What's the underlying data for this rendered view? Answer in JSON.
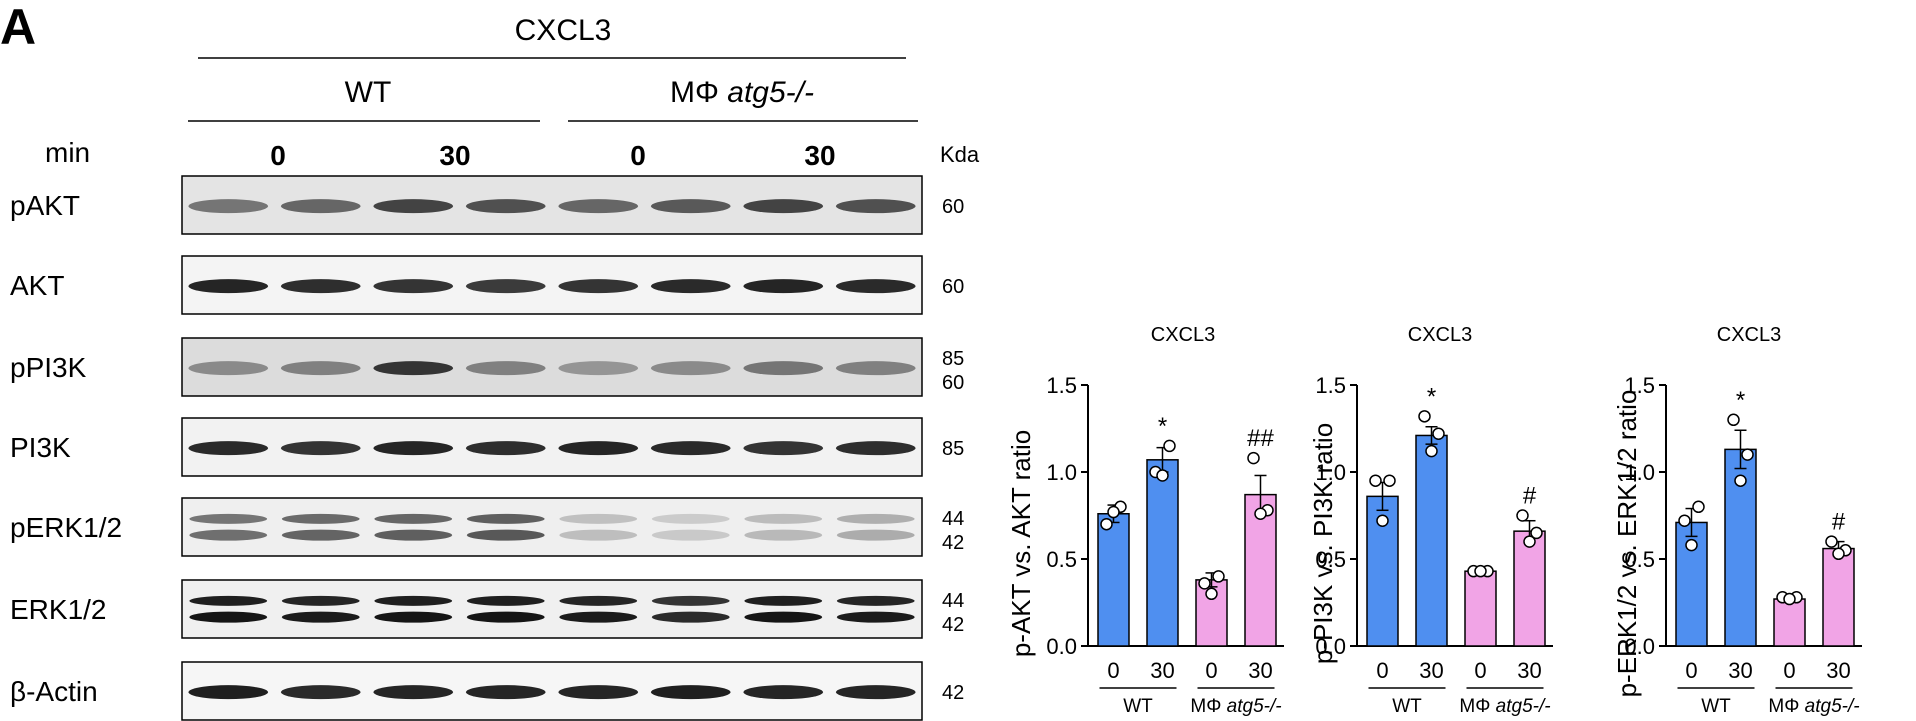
{
  "panel_label": "A",
  "blot": {
    "treatment": "CXCL3",
    "groups": [
      {
        "name": "WT",
        "name_italic": ""
      },
      {
        "name": "MΦ ",
        "name_italic": "atg5-/-"
      }
    ],
    "time_label": "min",
    "times": [
      "0",
      "30",
      "0",
      "30"
    ],
    "kda_label": "Kda",
    "rows": [
      {
        "label": "pAKT",
        "kda": [
          "60"
        ],
        "bands": 1,
        "intensities": [
          0.55,
          0.62,
          0.78,
          0.72,
          0.62,
          0.68,
          0.78,
          0.72
        ],
        "bg": "#e4e4e4"
      },
      {
        "label": "AKT",
        "kda": [
          "60"
        ],
        "bands": 1,
        "intensities": [
          0.92,
          0.88,
          0.85,
          0.82,
          0.85,
          0.9,
          0.92,
          0.9
        ],
        "bg": "#f4f4f4"
      },
      {
        "label": "pPI3K",
        "kda": [
          "85",
          "60"
        ],
        "bands": 1,
        "intensities": [
          0.45,
          0.5,
          0.85,
          0.5,
          0.4,
          0.45,
          0.55,
          0.5
        ],
        "bg": "#dcdcdc"
      },
      {
        "label": "PI3K",
        "kda": [
          "85"
        ],
        "bands": 1,
        "intensities": [
          0.9,
          0.85,
          0.92,
          0.88,
          0.92,
          0.9,
          0.85,
          0.88
        ],
        "bg": "#f2f2f2"
      },
      {
        "label": "pERK1/2",
        "kda": [
          "44",
          "42"
        ],
        "bands": 2,
        "intensities": [
          0.55,
          0.6,
          0.62,
          0.65,
          0.2,
          0.15,
          0.22,
          0.28
        ],
        "bg": "#efefef"
      },
      {
        "label": "ERK1/2",
        "kda": [
          "44",
          "42"
        ],
        "bands": 2,
        "intensities": [
          0.95,
          0.92,
          0.95,
          0.95,
          0.92,
          0.85,
          0.95,
          0.92
        ],
        "bg": "#f0f0f0"
      },
      {
        "label": "β-Actin",
        "kda": [
          "42"
        ],
        "bands": 1,
        "intensities": [
          0.95,
          0.9,
          0.92,
          0.92,
          0.92,
          0.95,
          0.92,
          0.92
        ],
        "bg": "#f6f6f6"
      }
    ]
  },
  "colors": {
    "wt": "#4f8ff0",
    "ko": "#f1a4e6",
    "edge": "#000000"
  },
  "chart_data": [
    {
      "type": "bar",
      "title": "CXCL3",
      "ylabel": "p-AKT vs. AKT ratio",
      "ylim": [
        0,
        1.5
      ],
      "yticks": [
        "0.0",
        "0.5",
        "1.0",
        "1.5"
      ],
      "categories": [
        "0",
        "30",
        "0",
        "30"
      ],
      "groups": [
        {
          "label": "WT",
          "label_italic": ""
        },
        {
          "label": "MΦ ",
          "label_italic": "atg5-/-"
        }
      ],
      "values": [
        0.76,
        1.07,
        0.38,
        0.87
      ],
      "errors": [
        0.05,
        0.07,
        0.04,
        0.11
      ],
      "points": [
        [
          0.7,
          0.8,
          0.77
        ],
        [
          1.0,
          1.15,
          0.98
        ],
        [
          0.36,
          0.4,
          0.3
        ],
        [
          1.08,
          0.78,
          0.76
        ]
      ],
      "annotations": [
        "",
        "*",
        "",
        "##"
      ]
    },
    {
      "type": "bar",
      "title": "CXCL3",
      "ylabel": "p-PI3K vs. PI3K ratio",
      "ylim": [
        0,
        1.5
      ],
      "yticks": [
        "0.0",
        "0.5",
        "1.0",
        "1.5"
      ],
      "categories": [
        "0",
        "30",
        "0",
        "30"
      ],
      "groups": [
        {
          "label": "WT",
          "label_italic": ""
        },
        {
          "label": "MΦ ",
          "label_italic": "atg5-/-"
        }
      ],
      "values": [
        0.86,
        1.21,
        0.43,
        0.66
      ],
      "errors": [
        0.08,
        0.05,
        0.01,
        0.06
      ],
      "points": [
        [
          0.95,
          0.95,
          0.72
        ],
        [
          1.32,
          1.22,
          1.12
        ],
        [
          0.43,
          0.43,
          0.43
        ],
        [
          0.75,
          0.65,
          0.6
        ]
      ],
      "annotations": [
        "",
        "*",
        "",
        "#"
      ]
    },
    {
      "type": "bar",
      "title": "CXCL3",
      "ylabel": "p-ERK1/2 vs. ERK1/2 ratio",
      "ylim": [
        0,
        1.5
      ],
      "yticks": [
        "0.0",
        "0.5",
        "1.0",
        "1.5"
      ],
      "categories": [
        "0",
        "30",
        "0",
        "30"
      ],
      "groups": [
        {
          "label": "WT",
          "label_italic": ""
        },
        {
          "label": "MΦ ",
          "label_italic": "atg5-/-"
        }
      ],
      "values": [
        0.71,
        1.13,
        0.27,
        0.56
      ],
      "errors": [
        0.08,
        0.11,
        0.01,
        0.04
      ],
      "points": [
        [
          0.72,
          0.8,
          0.58
        ],
        [
          1.3,
          1.1,
          0.95
        ],
        [
          0.28,
          0.28,
          0.27
        ],
        [
          0.6,
          0.55,
          0.53
        ]
      ],
      "annotations": [
        "",
        "*",
        "",
        "#"
      ]
    }
  ]
}
